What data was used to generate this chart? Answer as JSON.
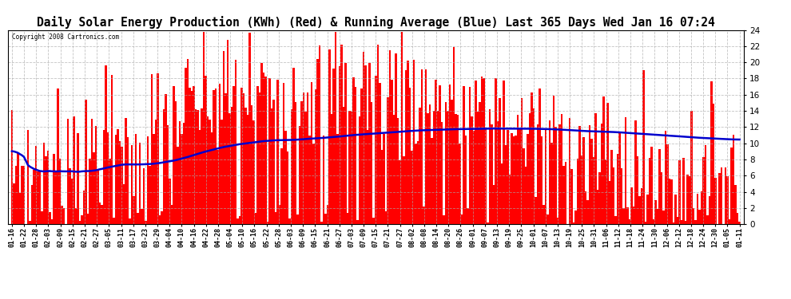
{
  "title": "Daily Solar Energy Production (KWh) (Red) & Running Average (Blue) Last 365 Days Wed Jan 16 07:24",
  "copyright_text": "Copyright 2008 Cartronics.com",
  "bar_color": "#ff0000",
  "avg_line_color": "#0000cd",
  "background_color": "#ffffff",
  "grid_color": "#aaaaaa",
  "ylim": [
    0,
    24.0
  ],
  "yticks": [
    0.0,
    2.0,
    4.0,
    6.0,
    8.0,
    10.0,
    12.0,
    14.0,
    16.0,
    18.0,
    20.0,
    22.0,
    24.0
  ],
  "xlabel_fontsize": 6.0,
  "ylabel_fontsize": 7.5,
  "title_fontsize": 10.5,
  "x_labels": [
    "01-16",
    "01-22",
    "01-28",
    "02-03",
    "02-09",
    "02-15",
    "02-21",
    "02-27",
    "03-05",
    "03-11",
    "03-17",
    "03-23",
    "03-29",
    "04-04",
    "04-10",
    "04-16",
    "04-22",
    "04-28",
    "05-04",
    "05-10",
    "05-16",
    "05-22",
    "05-28",
    "06-03",
    "06-09",
    "06-15",
    "06-21",
    "06-27",
    "07-03",
    "07-09",
    "07-15",
    "07-21",
    "07-27",
    "08-02",
    "08-08",
    "08-14",
    "08-20",
    "08-26",
    "09-01",
    "09-07",
    "09-13",
    "09-19",
    "09-25",
    "10-01",
    "10-07",
    "10-13",
    "10-19",
    "10-25",
    "10-31",
    "11-06",
    "11-12",
    "11-18",
    "11-24",
    "11-30",
    "12-06",
    "12-12",
    "12-18",
    "12-24",
    "12-30",
    "01-05",
    "01-11"
  ]
}
